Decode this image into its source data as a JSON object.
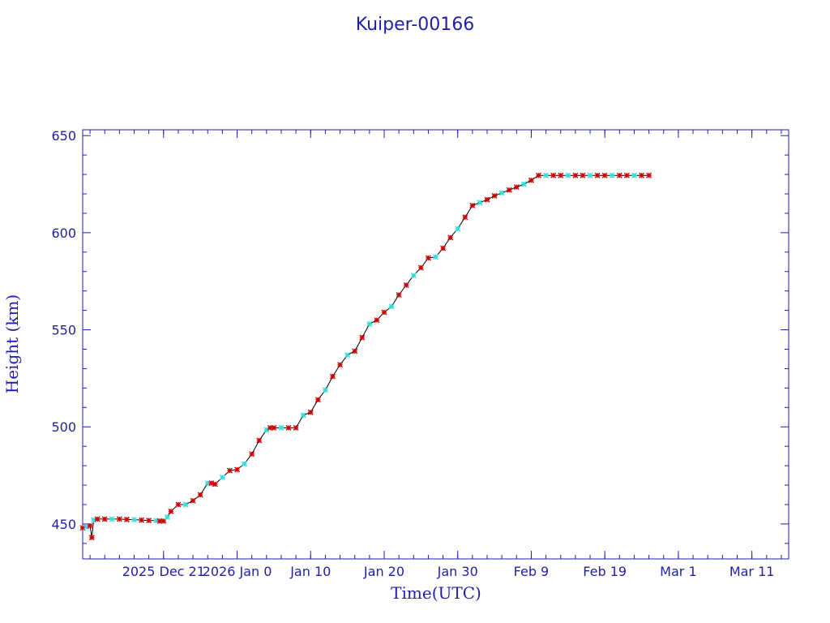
{
  "colors": {
    "axis": "#1f1fa8",
    "line": "#000000",
    "marker_primary": "#cc0000",
    "marker_secondary": "#33dddd",
    "background": "#ffffff"
  },
  "chart_data": {
    "type": "scatter",
    "title": "Kuiper-00166",
    "xlabel": "Time(UTC)",
    "ylabel": "Height (km)",
    "xlim": [
      "2025-12-10",
      "2026-03-16"
    ],
    "ylim": [
      432,
      653
    ],
    "yticks": [
      450,
      500,
      550,
      600,
      650
    ],
    "xticks": [
      {
        "date": "2025-12-21",
        "label": "2025 Dec 21"
      },
      {
        "date": "2025-12-31",
        "label": "2026 Jan 0"
      },
      {
        "date": "2026-01-10",
        "label": "Jan 10"
      },
      {
        "date": "2026-01-20",
        "label": "Jan 20"
      },
      {
        "date": "2026-01-30",
        "label": "Jan 30"
      },
      {
        "date": "2026-02-09",
        "label": "Feb 9"
      },
      {
        "date": "2026-02-19",
        "label": "Feb 19"
      },
      {
        "date": "2026-03-01",
        "label": "Mar 1"
      },
      {
        "date": "2026-03-11",
        "label": "Mar 11"
      }
    ],
    "grid": false,
    "series": [
      {
        "x": [
          "2025-12-10",
          "2025-12-10T12:00",
          "2025-12-11",
          "2025-12-11T06:00",
          "2025-12-11T12:00",
          "2025-12-12",
          "2025-12-13",
          "2025-12-14",
          "2025-12-15",
          "2025-12-16",
          "2025-12-17",
          "2025-12-18",
          "2025-12-19",
          "2025-12-20",
          "2025-12-20T12:00",
          "2025-12-21",
          "2025-12-21T12:00",
          "2025-12-22",
          "2025-12-23",
          "2025-12-24",
          "2025-12-25",
          "2025-12-26",
          "2025-12-27",
          "2025-12-27T12:00",
          "2025-12-28",
          "2025-12-29",
          "2025-12-30",
          "2025-12-31",
          "2026-01-01",
          "2026-01-02",
          "2026-01-03",
          "2026-01-04",
          "2026-01-04T12:00",
          "2026-01-05",
          "2026-01-06",
          "2026-01-07",
          "2026-01-08",
          "2026-01-09",
          "2026-01-10",
          "2026-01-11",
          "2026-01-12",
          "2026-01-13",
          "2026-01-14",
          "2026-01-15",
          "2026-01-16",
          "2026-01-17",
          "2026-01-18",
          "2026-01-19",
          "2026-01-20",
          "2026-01-21",
          "2026-01-22",
          "2026-01-23",
          "2026-01-24",
          "2026-01-25",
          "2026-01-26",
          "2026-01-27",
          "2026-01-28",
          "2026-01-29",
          "2026-01-30",
          "2026-01-31",
          "2026-02-01",
          "2026-02-02",
          "2026-02-03",
          "2026-02-04",
          "2026-02-05",
          "2026-02-06",
          "2026-02-07",
          "2026-02-08",
          "2026-02-09",
          "2026-02-10",
          "2026-02-11",
          "2026-02-12",
          "2026-02-13",
          "2026-02-14",
          "2026-02-15",
          "2026-02-16",
          "2026-02-17",
          "2026-02-18",
          "2026-02-19",
          "2026-02-20",
          "2026-02-21",
          "2026-02-22",
          "2026-02-23",
          "2026-02-24",
          "2026-02-25"
        ],
        "y": [
          448,
          448.5,
          449,
          443,
          452,
          452.5,
          452.5,
          452.5,
          452.5,
          452.3,
          452.2,
          452,
          451.8,
          451.7,
          451.5,
          451.5,
          453.5,
          456.5,
          460,
          460,
          462,
          465,
          471,
          471,
          470.5,
          474,
          477.5,
          478,
          481,
          486,
          493,
          498.5,
          499.5,
          499.5,
          499.5,
          499.5,
          499.5,
          506,
          507.5,
          514,
          519,
          526,
          532,
          537,
          539,
          546,
          553,
          555,
          559,
          562,
          568,
          573,
          578,
          582,
          587,
          587.5,
          592,
          597.5,
          602,
          608,
          614,
          615.5,
          617,
          619,
          620.5,
          622,
          623.5,
          625,
          627,
          629.5,
          629.5,
          629.5,
          629.5,
          629.5,
          629.5,
          629.5,
          629.5,
          629.5,
          629.5,
          629.5,
          629.5,
          629.5,
          629.5,
          629.5,
          629.5
        ]
      }
    ]
  }
}
